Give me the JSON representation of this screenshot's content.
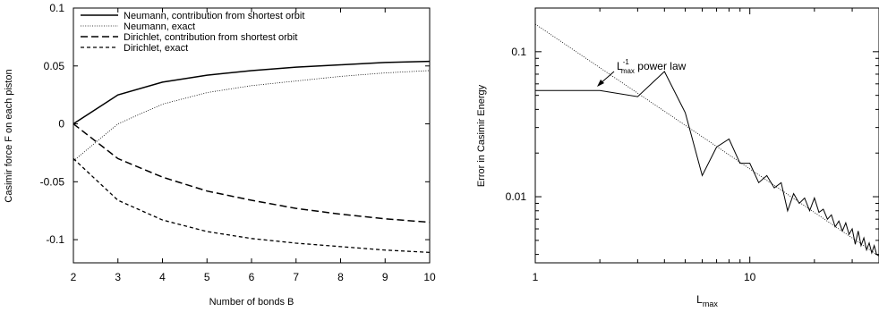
{
  "chart_data": [
    {
      "type": "line",
      "xlabel": "Number of bonds B",
      "ylabel": "Casimir force F on each piston",
      "xlim": [
        2,
        10
      ],
      "ylim": [
        -0.12,
        0.1
      ],
      "xticks": [
        2,
        3,
        4,
        5,
        6,
        7,
        8,
        9,
        10
      ],
      "yticks": [
        {
          "value": 0.1,
          "label": "0.1"
        },
        {
          "value": 0.05,
          "label": "0.05"
        },
        {
          "value": 0,
          "label": "0"
        },
        {
          "value": -0.05,
          "label": "-0.05"
        },
        {
          "value": -0.1,
          "label": "-0.1"
        }
      ],
      "legend_position": "top-left",
      "x": [
        2,
        3,
        4,
        5,
        6,
        7,
        8,
        9,
        10
      ],
      "series": [
        {
          "name": "Neumann, contribution from shortest orbit",
          "style": "solid",
          "values": [
            0.0,
            0.025,
            0.036,
            0.042,
            0.046,
            0.049,
            0.051,
            0.053,
            0.054
          ]
        },
        {
          "name": "Neumann, exact",
          "style": "dotted",
          "values": [
            -0.032,
            0.0,
            0.017,
            0.027,
            0.033,
            0.037,
            0.041,
            0.044,
            0.046
          ]
        },
        {
          "name": "Dirichlet, contribution from shortest orbit",
          "style": "dashed",
          "values": [
            0.0,
            -0.03,
            -0.046,
            -0.058,
            -0.066,
            -0.073,
            -0.078,
            -0.082,
            -0.085
          ]
        },
        {
          "name": "Dirichlet, exact",
          "style": "short-dashed",
          "values": [
            -0.03,
            -0.066,
            -0.083,
            -0.093,
            -0.099,
            -0.103,
            -0.106,
            -0.109,
            -0.111
          ]
        }
      ]
    },
    {
      "type": "line",
      "xlabel": "L",
      "xlabel_sub": "max",
      "ylabel": "Error in Casimir Energy",
      "xscale": "log",
      "yscale": "log",
      "xlim": [
        1,
        40
      ],
      "ylim": [
        0.0035,
        0.2
      ],
      "xticks": [
        {
          "value": 1,
          "label": "1"
        },
        {
          "value": 10,
          "label": "10"
        }
      ],
      "yticks": [
        {
          "value": 0.1,
          "label": "0.1"
        },
        {
          "value": 0.01,
          "label": "0.01"
        }
      ],
      "annotation": {
        "text_main": "L",
        "text_sub": "max",
        "text_sup": "-1",
        "text_rest": " power law"
      },
      "series": [
        {
          "style": "solid",
          "x": [
            1,
            2,
            3,
            4,
            5,
            6,
            7,
            8,
            9,
            10,
            11,
            12,
            13,
            14,
            15,
            16,
            17,
            18,
            19,
            20,
            21,
            22,
            23,
            24,
            25,
            26,
            27,
            28,
            29,
            30,
            31,
            32,
            33,
            34,
            35,
            36,
            37,
            38,
            39,
            40
          ],
          "values": [
            0.054,
            0.054,
            0.049,
            0.073,
            0.038,
            0.014,
            0.022,
            0.025,
            0.017,
            0.017,
            0.0125,
            0.014,
            0.0115,
            0.0125,
            0.008,
            0.0105,
            0.009,
            0.0098,
            0.008,
            0.0098,
            0.0078,
            0.0082,
            0.007,
            0.0075,
            0.0062,
            0.0068,
            0.0058,
            0.0066,
            0.0055,
            0.006,
            0.0047,
            0.0058,
            0.0046,
            0.0052,
            0.0043,
            0.0048,
            0.0041,
            0.0046,
            0.004,
            0.0039
          ]
        },
        {
          "style": "dotted",
          "x": [
            1,
            40
          ],
          "values": [
            0.155,
            0.0039
          ]
        }
      ]
    }
  ]
}
